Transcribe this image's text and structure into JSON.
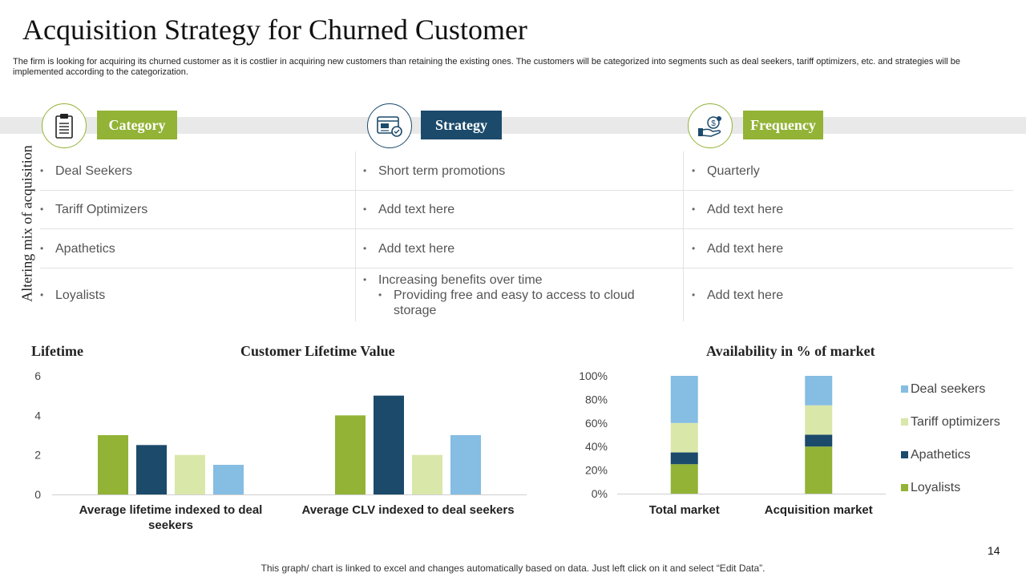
{
  "slide": {
    "title": "Acquisition Strategy for Churned Customer",
    "subtitle": "The firm is looking for acquiring its churned customer as it is costlier in acquiring new customers than retaining the existing ones. The customers will be categorized into segments such as deal seekers, tariff optimizers, etc. and strategies will be implemented according to the categorization.",
    "side_label": "Altering mix of acquisition",
    "footnote": "This graph/ chart is linked to excel and changes automatically based on data. Just left click on it and select “Edit Data”.",
    "page_number": "14"
  },
  "columns": [
    {
      "label": "Category",
      "icon": "clipboard-icon",
      "color": "#92b336"
    },
    {
      "label": "Strategy",
      "icon": "browser-settings-icon",
      "color": "#1b4a6b"
    },
    {
      "label": "Frequency",
      "icon": "money-hand-icon",
      "color": "#92b336"
    }
  ],
  "rows": [
    {
      "category": "Deal Seekers",
      "strategy": [
        "Short term promotions"
      ],
      "frequency": "Quarterly"
    },
    {
      "category": "Tariff Optimizers",
      "strategy": [
        "Add text here"
      ],
      "frequency": "Add text here"
    },
    {
      "category": "Apathetics",
      "strategy": [
        "Add text here"
      ],
      "frequency": "Add text here"
    },
    {
      "category": "Loyalists",
      "strategy": [
        "Increasing benefits over time",
        "Providing free and easy to access to cloud storage"
      ],
      "frequency": "Add text here"
    }
  ],
  "bullet": "•",
  "colors": {
    "green": "#92b336",
    "navy": "#1b4a6b",
    "pale_green": "#d9e7a9",
    "light_blue": "#85bde3",
    "band": "#e9e9e9"
  },
  "chart_data": [
    {
      "type": "bar",
      "title": "Customer Lifetime Value",
      "ylabel": "Lifetime",
      "categories": [
        "Average lifetime indexed to deal seekers",
        "Average CLV indexed to deal seekers"
      ],
      "series": [
        {
          "values": [
            3,
            4
          ],
          "color": "#92b336"
        },
        {
          "values": [
            2.5,
            5
          ],
          "color": "#1b4a6b"
        },
        {
          "values": [
            2,
            2
          ],
          "color": "#d9e7a9"
        },
        {
          "values": [
            1.5,
            3
          ],
          "color": "#85bde3"
        }
      ],
      "ylim": [
        0,
        6
      ],
      "yticks": [
        "0",
        "2",
        "4",
        "6"
      ],
      "grid": false
    },
    {
      "type": "bar",
      "stacked": true,
      "title": "Availability in % of market",
      "categories": [
        "Total market",
        "Acquisition market"
      ],
      "series": [
        {
          "name": "Loyalists",
          "values": [
            25,
            40
          ],
          "color": "#92b336"
        },
        {
          "name": "Apathetics",
          "values": [
            10,
            10
          ],
          "color": "#1b4a6b"
        },
        {
          "name": "Tariff optimizers",
          "values": [
            25,
            25
          ],
          "color": "#d9e7a9"
        },
        {
          "name": "Deal seekers",
          "values": [
            40,
            25
          ],
          "color": "#85bde3"
        }
      ],
      "ylim": [
        0,
        100
      ],
      "yticks": [
        "0%",
        "20%",
        "40%",
        "60%",
        "80%",
        "100%"
      ],
      "legend_position": "right",
      "grid": false
    }
  ]
}
